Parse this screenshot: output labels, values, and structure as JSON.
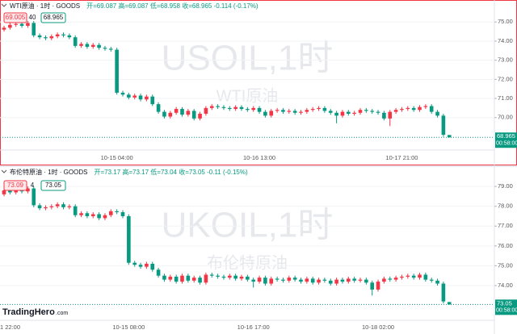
{
  "brand": "TradingHero",
  "brand_suffix": ".com",
  "chart_data": [
    {
      "type": "candlestick",
      "symbol": "WTI原油 · 1时 · GOODS",
      "ohlc": "开=69.087 高=69.087 低=68.958 收=68.965 -0.114 (-0.17%)",
      "badges": [
        "69.005",
        "40",
        "68.965"
      ],
      "watermark": [
        "USOIL,1时",
        "WTI原油"
      ],
      "up_color": "#f23645",
      "down_color": "#089981",
      "grid": true,
      "categories": [
        null,
        null,
        null,
        null,
        null,
        null,
        null,
        null,
        null,
        null,
        null,
        null,
        null,
        null,
        null,
        null,
        null,
        null,
        null,
        "10-15 04:00",
        null,
        null,
        null,
        null,
        null,
        null,
        null,
        null,
        null,
        null,
        null,
        null,
        null,
        null,
        null,
        null,
        null,
        null,
        null,
        null,
        null,
        null,
        null,
        "10-16 13:00",
        null,
        null,
        null,
        null,
        null,
        null,
        null,
        null,
        null,
        null,
        null,
        null,
        null,
        null,
        null,
        null,
        null,
        null,
        null,
        null,
        null,
        null,
        null,
        "10-17 21:00",
        null,
        null,
        null,
        null,
        null,
        null,
        null,
        null
      ],
      "open": [
        74.6,
        74.7,
        74.85,
        74.9,
        74.8,
        74.95,
        74.3,
        74.2,
        74.15,
        74.25,
        74.35,
        74.3,
        74.2,
        73.75,
        73.85,
        73.7,
        73.8,
        73.65,
        73.6,
        73.55,
        71.3,
        71.2,
        71.05,
        71.15,
        70.95,
        71.1,
        70.7,
        70.3,
        70.05,
        70.25,
        70.45,
        70.15,
        70.35,
        69.95,
        70.2,
        70.5,
        70.6,
        70.55,
        70.5,
        70.45,
        70.55,
        70.45,
        70.4,
        70.5,
        70.3,
        70.1,
        70.35,
        70.4,
        70.3,
        70.35,
        70.25,
        70.3,
        70.4,
        70.45,
        70.5,
        70.35,
        70.25,
        70.1,
        70.3,
        70.2,
        70.25,
        70.4,
        70.35,
        70.3,
        70.25,
        69.95,
        70.3,
        70.4,
        70.45,
        70.5,
        70.4,
        70.55,
        70.6,
        70.3,
        70.1,
        69.087
      ],
      "high": [
        74.8,
        74.95,
        75.0,
        75.0,
        75.05,
        75.05,
        74.4,
        74.3,
        74.35,
        74.45,
        74.45,
        74.4,
        74.3,
        73.95,
        73.95,
        73.9,
        73.9,
        73.75,
        73.7,
        73.65,
        71.4,
        71.3,
        71.25,
        71.25,
        71.2,
        71.2,
        70.8,
        70.4,
        70.35,
        70.55,
        70.55,
        70.45,
        70.45,
        70.3,
        70.6,
        70.7,
        70.7,
        70.65,
        70.6,
        70.65,
        70.65,
        70.55,
        70.6,
        70.6,
        70.4,
        70.45,
        70.5,
        70.5,
        70.45,
        70.45,
        70.4,
        70.5,
        70.55,
        70.6,
        70.6,
        70.45,
        70.35,
        70.4,
        70.4,
        70.35,
        70.5,
        70.5,
        70.45,
        70.4,
        70.35,
        70.4,
        70.5,
        70.55,
        70.6,
        70.6,
        70.65,
        70.7,
        70.7,
        70.4,
        70.2,
        69.087
      ],
      "low": [
        74.5,
        74.6,
        74.75,
        74.7,
        74.7,
        74.2,
        74.1,
        74.05,
        74.05,
        74.15,
        74.2,
        74.1,
        73.65,
        73.65,
        73.6,
        73.6,
        73.55,
        73.5,
        73.45,
        71.2,
        71.1,
        70.95,
        70.95,
        70.85,
        70.85,
        70.6,
        70.2,
        69.95,
        69.95,
        70.15,
        70.05,
        70.05,
        69.85,
        69.85,
        70.1,
        70.4,
        70.45,
        70.4,
        70.35,
        70.35,
        70.35,
        70.3,
        70.3,
        70.2,
        70.0,
        70.0,
        70.25,
        70.2,
        70.2,
        70.15,
        70.15,
        70.2,
        70.3,
        70.35,
        70.25,
        70.15,
        69.7,
        70.0,
        70.1,
        70.1,
        70.15,
        70.25,
        70.2,
        70.15,
        69.85,
        69.55,
        70.2,
        70.3,
        70.35,
        70.3,
        70.3,
        70.45,
        70.2,
        70.0,
        69.0,
        68.958
      ],
      "close": [
        74.7,
        74.85,
        74.9,
        74.8,
        74.95,
        74.3,
        74.2,
        74.15,
        74.25,
        74.35,
        74.3,
        74.2,
        73.75,
        73.85,
        73.7,
        73.8,
        73.65,
        73.6,
        73.55,
        71.3,
        71.2,
        71.05,
        71.15,
        70.95,
        71.1,
        70.7,
        70.3,
        70.05,
        70.25,
        70.45,
        70.15,
        70.35,
        69.95,
        70.2,
        70.5,
        70.6,
        70.55,
        70.5,
        70.45,
        70.55,
        70.45,
        70.4,
        70.5,
        70.3,
        70.1,
        70.35,
        70.4,
        70.3,
        70.35,
        70.25,
        70.3,
        70.4,
        70.45,
        70.5,
        70.35,
        70.25,
        70.1,
        70.3,
        70.2,
        70.25,
        70.4,
        70.35,
        70.3,
        70.25,
        69.95,
        70.3,
        70.4,
        70.45,
        70.5,
        70.4,
        70.55,
        70.6,
        70.3,
        70.1,
        69.1,
        68.965
      ],
      "ylim": [
        68.3,
        76.15
      ],
      "yticks": [
        {
          "value": 70,
          "label": "70.00"
        },
        {
          "value": 71,
          "label": "71.00"
        },
        {
          "value": 72,
          "label": "72.00"
        },
        {
          "value": 73,
          "label": "73.00"
        },
        {
          "value": 74,
          "label": "74.00"
        },
        {
          "value": 75,
          "label": "75.00"
        }
      ],
      "last_price": 68.965,
      "countdown": "00:58:00"
    },
    {
      "type": "candlestick",
      "symbol": "布伦特原油 · 1时 · GOODS",
      "ohlc": "开=73.17 高=73.17 低=73.04 收=73.05 -0.11 (-0.15%)",
      "badges": [
        "73.09",
        "4",
        "73.05"
      ],
      "watermark": [
        "UKOIL,1时",
        "布伦特原油"
      ],
      "up_color": "#f23645",
      "down_color": "#089981",
      "grid": true,
      "categories": [
        "1 22:00",
        null,
        null,
        null,
        null,
        null,
        null,
        null,
        null,
        null,
        null,
        null,
        null,
        null,
        null,
        null,
        null,
        null,
        null,
        null,
        null,
        "10-15 08:00",
        null,
        null,
        null,
        null,
        null,
        null,
        null,
        null,
        null,
        null,
        null,
        null,
        null,
        null,
        null,
        null,
        null,
        null,
        null,
        null,
        "10-16 17:00",
        null,
        null,
        null,
        null,
        null,
        null,
        null,
        null,
        null,
        null,
        null,
        null,
        null,
        null,
        null,
        null,
        null,
        null,
        null,
        null,
        "10-18 02:00",
        null,
        null,
        null,
        null,
        null,
        null,
        null,
        null,
        null,
        null,
        null,
        null
      ],
      "open": [
        78.6,
        78.8,
        78.7,
        78.85,
        78.75,
        78.9,
        78.05,
        77.9,
        77.95,
        78.0,
        78.1,
        77.95,
        78.0,
        77.55,
        77.65,
        77.5,
        77.6,
        77.4,
        77.55,
        77.75,
        77.7,
        77.5,
        75.15,
        75.05,
        74.95,
        75.1,
        74.8,
        74.5,
        74.3,
        74.45,
        74.2,
        74.5,
        74.25,
        74.4,
        74.15,
        74.55,
        74.5,
        74.45,
        74.4,
        74.5,
        74.35,
        74.45,
        74.3,
        74.2,
        74.4,
        74.1,
        74.35,
        74.3,
        74.25,
        74.4,
        74.3,
        74.2,
        74.35,
        74.15,
        74.3,
        74.25,
        74.1,
        74.3,
        74.2,
        74.35,
        74.25,
        74.3,
        74.15,
        73.8,
        74.2,
        74.35,
        74.3,
        74.4,
        74.45,
        74.5,
        74.4,
        74.55,
        74.3,
        74.25,
        74.1,
        73.17
      ],
      "high": [
        78.9,
        78.9,
        78.95,
        78.95,
        79.0,
        79.0,
        78.15,
        78.05,
        78.1,
        78.2,
        78.2,
        78.1,
        78.1,
        77.75,
        77.75,
        77.7,
        77.7,
        77.65,
        77.85,
        77.85,
        77.8,
        77.6,
        75.25,
        75.15,
        75.2,
        75.2,
        74.9,
        74.6,
        74.55,
        74.55,
        74.6,
        74.6,
        74.5,
        74.5,
        74.65,
        74.65,
        74.6,
        74.55,
        74.6,
        74.6,
        74.55,
        74.55,
        74.4,
        74.5,
        74.5,
        74.45,
        74.45,
        74.4,
        74.5,
        74.5,
        74.4,
        74.45,
        74.45,
        74.4,
        74.4,
        74.35,
        74.4,
        74.4,
        74.45,
        74.45,
        74.4,
        74.4,
        74.25,
        74.3,
        74.45,
        74.45,
        74.5,
        74.55,
        74.6,
        74.6,
        74.65,
        74.65,
        74.4,
        74.35,
        74.2,
        73.17
      ],
      "low": [
        78.5,
        78.6,
        78.6,
        78.65,
        78.65,
        77.95,
        77.8,
        77.8,
        77.85,
        77.9,
        77.85,
        77.85,
        77.45,
        77.45,
        77.4,
        77.4,
        77.3,
        77.3,
        77.45,
        77.6,
        77.4,
        75.05,
        74.95,
        74.85,
        74.85,
        74.7,
        74.4,
        74.2,
        74.2,
        74.1,
        74.1,
        74.15,
        74.15,
        74.05,
        74.05,
        74.4,
        74.35,
        74.3,
        74.3,
        74.25,
        74.25,
        74.2,
        73.9,
        74.1,
        74.0,
        74.0,
        74.2,
        74.15,
        74.15,
        74.2,
        74.1,
        74.1,
        74.05,
        74.05,
        74.15,
        74.0,
        74.0,
        74.1,
        74.1,
        74.15,
        74.15,
        74.05,
        73.5,
        73.7,
        74.1,
        74.2,
        74.2,
        74.3,
        74.35,
        74.3,
        74.3,
        74.2,
        74.15,
        74.0,
        73.1,
        73.04
      ],
      "close": [
        78.8,
        78.7,
        78.85,
        78.75,
        78.9,
        78.05,
        77.9,
        77.95,
        78.0,
        78.1,
        77.95,
        78.0,
        77.55,
        77.65,
        77.5,
        77.6,
        77.4,
        77.55,
        77.75,
        77.7,
        77.5,
        75.15,
        75.05,
        74.95,
        75.1,
        74.8,
        74.5,
        74.3,
        74.45,
        74.2,
        74.5,
        74.25,
        74.4,
        74.15,
        74.55,
        74.5,
        74.45,
        74.4,
        74.5,
        74.35,
        74.45,
        74.3,
        74.2,
        74.4,
        74.1,
        74.35,
        74.3,
        74.25,
        74.4,
        74.3,
        74.2,
        74.35,
        74.15,
        74.3,
        74.25,
        74.1,
        74.3,
        74.2,
        74.35,
        74.25,
        74.3,
        74.15,
        73.8,
        74.2,
        74.35,
        74.3,
        74.4,
        74.45,
        74.5,
        74.4,
        74.55,
        74.3,
        74.25,
        74.1,
        73.2,
        73.05
      ],
      "ylim": [
        72.25,
        79.98
      ],
      "yticks": [
        {
          "value": 74,
          "label": "74.00"
        },
        {
          "value": 75,
          "label": "75.00"
        },
        {
          "value": 76,
          "label": "76.00"
        },
        {
          "value": 77,
          "label": "77.00"
        },
        {
          "value": 78,
          "label": "78.00"
        },
        {
          "value": 79,
          "label": "79.00"
        }
      ],
      "last_price": 73.05,
      "countdown": "00:58:00"
    }
  ]
}
